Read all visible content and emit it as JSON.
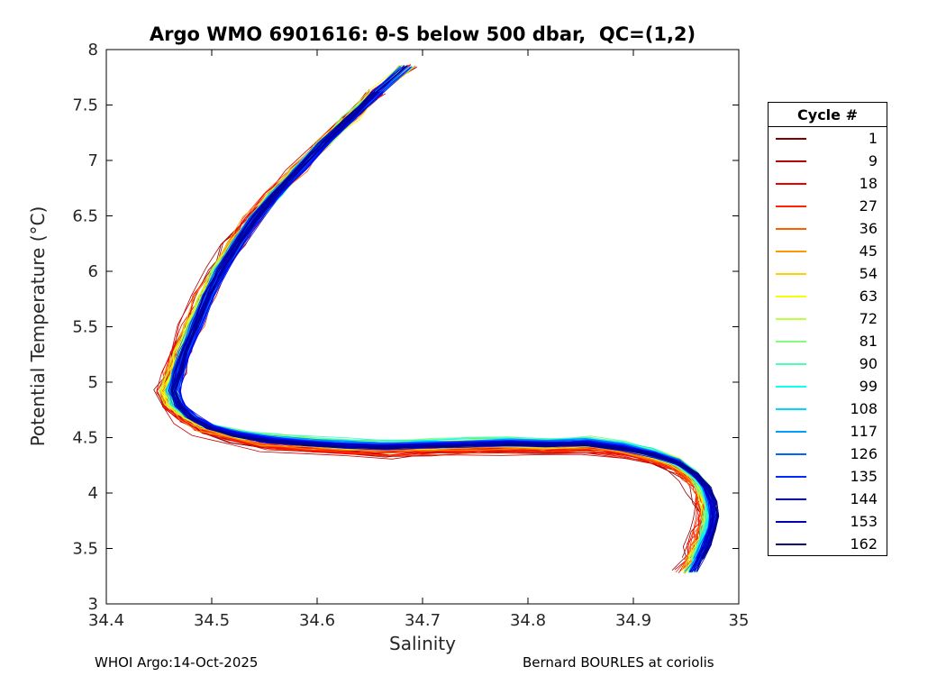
{
  "chart_data": {
    "type": "line",
    "title": "Argo WMO 6901616: θ-S below 500 dbar,  QC=(1,2)",
    "xlabel": "Salinity",
    "ylabel": "Potential Temperature (°C)",
    "xlim": [
      34.4,
      35
    ],
    "ylim": [
      3,
      8
    ],
    "xticks": [
      34.4,
      34.5,
      34.6,
      34.7,
      34.8,
      34.9,
      35
    ],
    "xtick_labels": [
      "34.4",
      "34.5",
      "34.6",
      "34.7",
      "34.8",
      "34.9",
      "35"
    ],
    "yticks": [
      3,
      3.5,
      4,
      4.5,
      5,
      5.5,
      6,
      6.5,
      7,
      7.5,
      8
    ],
    "ytick_labels": [
      "3",
      "3.5",
      "4",
      "4.5",
      "5",
      "5.5",
      "6",
      "6.5",
      "7",
      "7.5",
      "8"
    ],
    "grid": false,
    "legend": {
      "title": "Cycle #",
      "position": "right-outside",
      "entries": [
        {
          "label": "1",
          "color": "#800000"
        },
        {
          "label": "9",
          "color": "#B20000"
        },
        {
          "label": "18",
          "color": "#EB0000"
        },
        {
          "label": "27",
          "color": "#FF2500"
        },
        {
          "label": "36",
          "color": "#FF5E00"
        },
        {
          "label": "45",
          "color": "#FF9700"
        },
        {
          "label": "54",
          "color": "#FFD000"
        },
        {
          "label": "63",
          "color": "#F5FF0A"
        },
        {
          "label": "72",
          "color": "#BCFF43"
        },
        {
          "label": "81",
          "color": "#83FF7C"
        },
        {
          "label": "90",
          "color": "#4AFFB5"
        },
        {
          "label": "99",
          "color": "#11FFEE"
        },
        {
          "label": "108",
          "color": "#00D7FF"
        },
        {
          "label": "117",
          "color": "#009EFF"
        },
        {
          "label": "126",
          "color": "#0065FF"
        },
        {
          "label": "135",
          "color": "#002CFF"
        },
        {
          "label": "144",
          "color": "#0000F2"
        },
        {
          "label": "153",
          "color": "#0000B9"
        },
        {
          "label": "162",
          "color": "#000080"
        }
      ]
    },
    "series_info": {
      "n_cycles": 162,
      "first_cycle": 1,
      "last_cycle": 162,
      "colormap": "reversed-jet (cycle 1 = dark red, cycle 162 = dark navy)",
      "description": "One θ-S profile per float cycle below 500 dbar; early cycles red/orange, mid cycles yellow/green/cyan, late cycles blue/navy drawn on top"
    },
    "base_profile_S_theta": [
      [
        34.685,
        7.85
      ],
      [
        34.658,
        7.62
      ],
      [
        34.632,
        7.38
      ],
      [
        34.607,
        7.15
      ],
      [
        34.584,
        6.92
      ],
      [
        34.562,
        6.7
      ],
      [
        34.543,
        6.48
      ],
      [
        34.526,
        6.25
      ],
      [
        34.511,
        6.02
      ],
      [
        34.498,
        5.78
      ],
      [
        34.487,
        5.52
      ],
      [
        34.477,
        5.28
      ],
      [
        34.471,
        5.1
      ],
      [
        34.466,
        4.92
      ],
      [
        34.471,
        4.79
      ],
      [
        34.483,
        4.68
      ],
      [
        34.5,
        4.59
      ],
      [
        34.525,
        4.52
      ],
      [
        34.556,
        4.47
      ],
      [
        34.592,
        4.44
      ],
      [
        34.63,
        4.42
      ],
      [
        34.668,
        4.41
      ],
      [
        34.706,
        4.42
      ],
      [
        34.744,
        4.43
      ],
      [
        34.782,
        4.44
      ],
      [
        34.82,
        4.43
      ],
      [
        34.856,
        4.44
      ],
      [
        34.89,
        4.4
      ],
      [
        34.918,
        4.34
      ],
      [
        34.94,
        4.27
      ],
      [
        34.955,
        4.17
      ],
      [
        34.965,
        4.05
      ],
      [
        34.97,
        3.92
      ],
      [
        34.972,
        3.79
      ],
      [
        34.969,
        3.66
      ],
      [
        34.964,
        3.53
      ],
      [
        34.958,
        3.41
      ],
      [
        34.951,
        3.29
      ]
    ]
  },
  "footer": {
    "left": "WHOI Argo:14-Oct-2025",
    "right": "Bernard BOURLES at coriolis"
  }
}
